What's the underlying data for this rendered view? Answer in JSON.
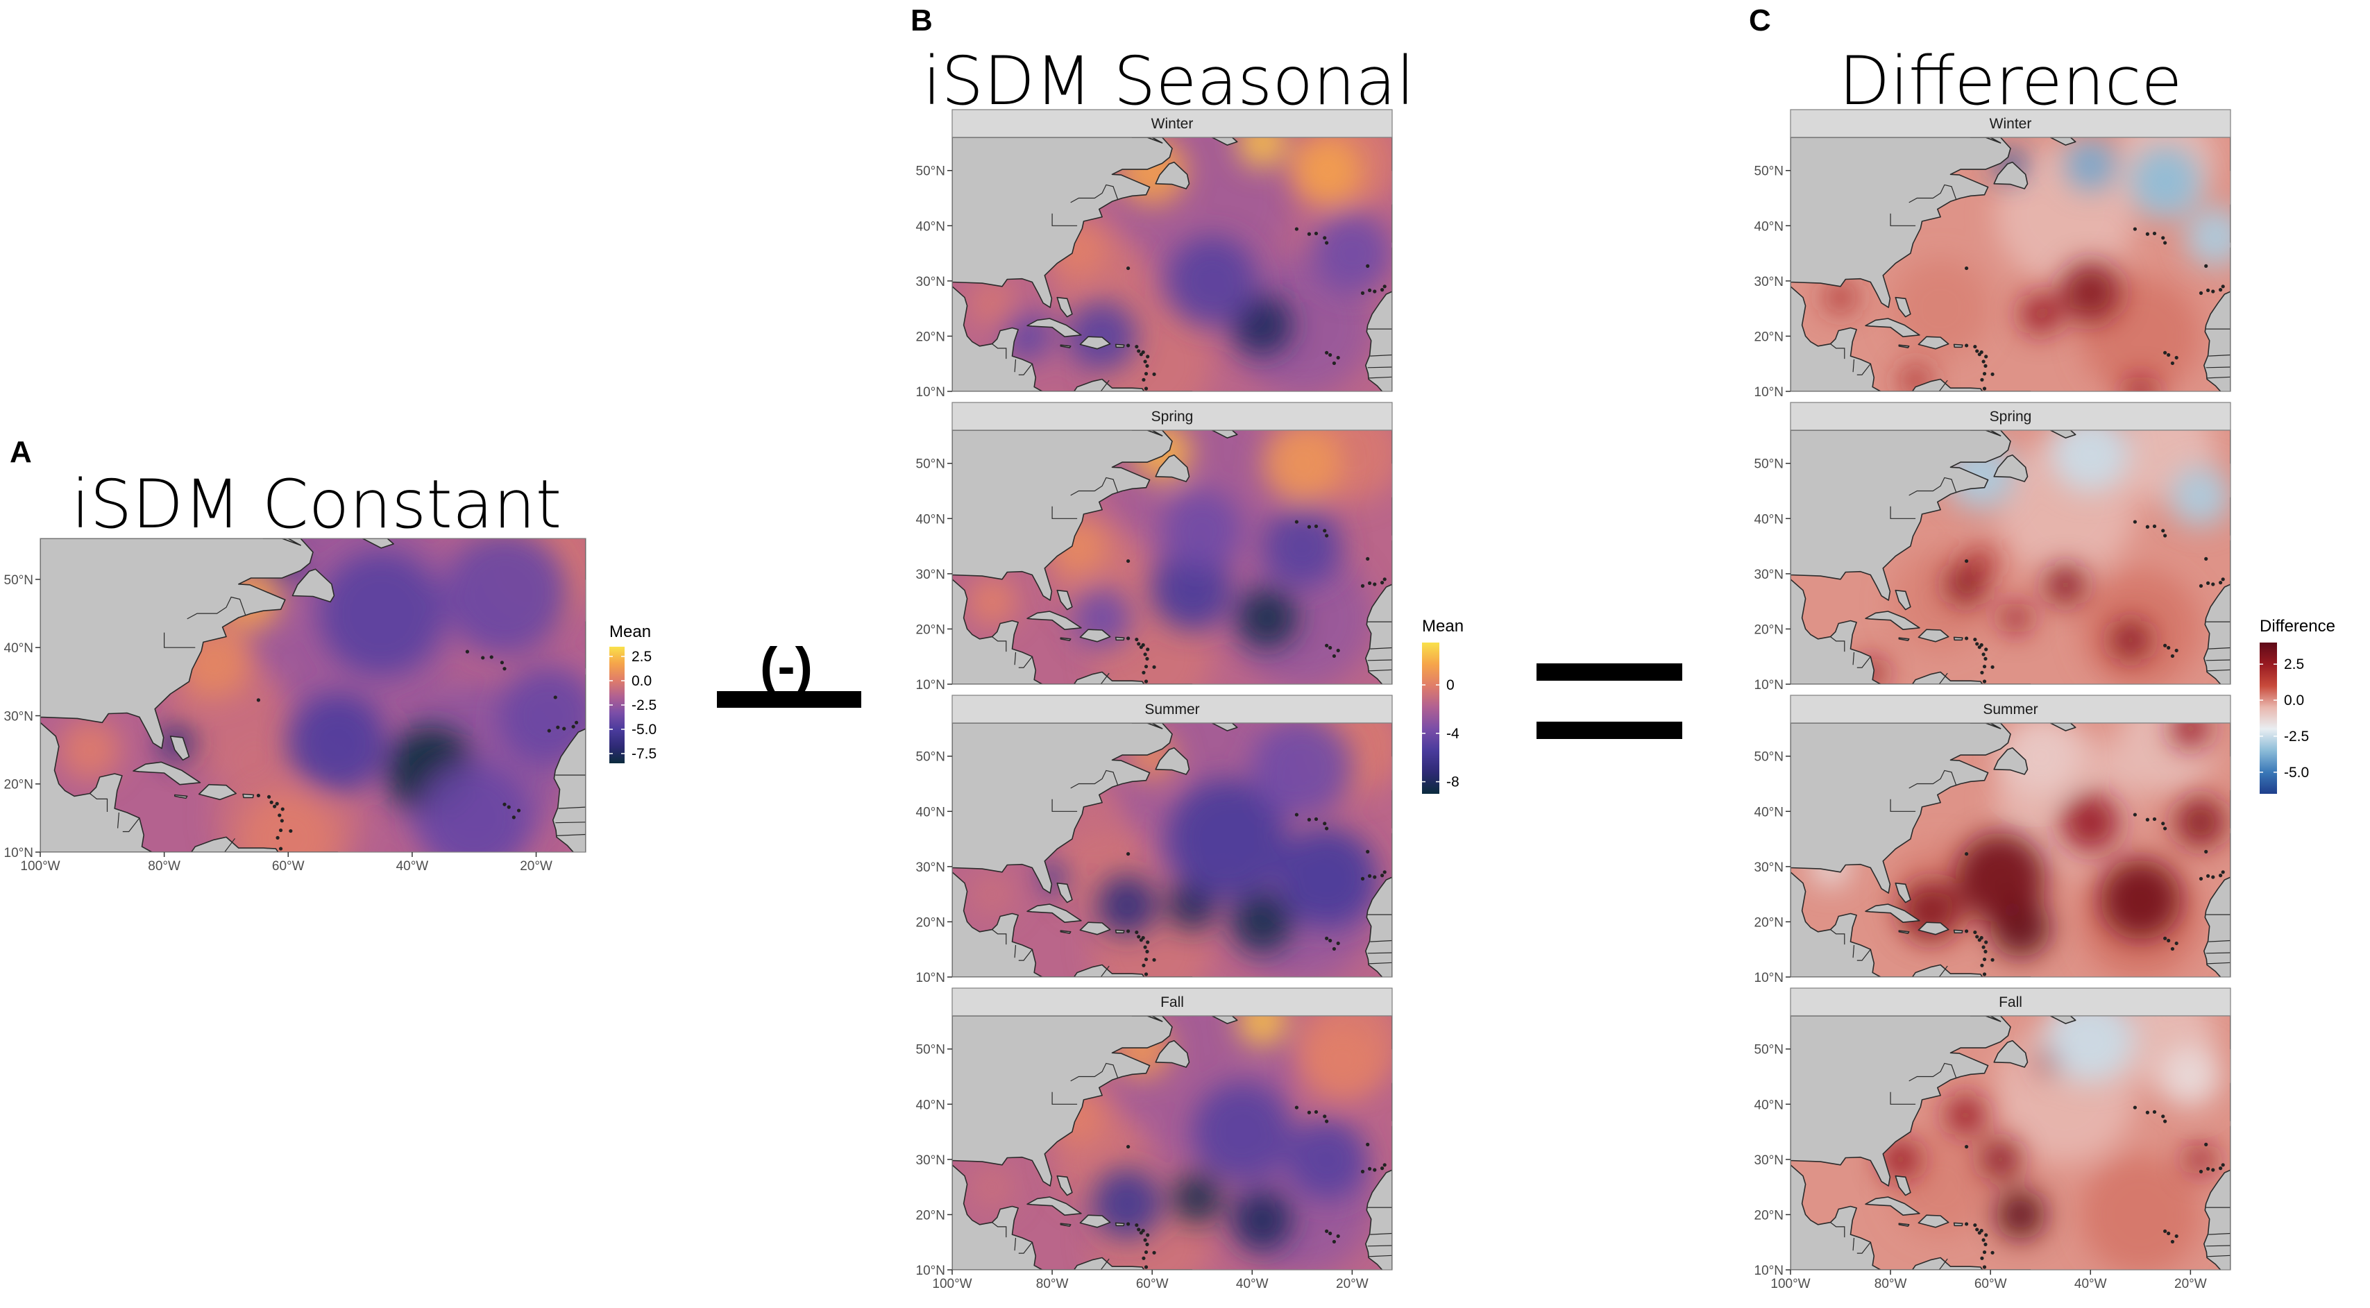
{
  "panels": [
    {
      "letter": "A",
      "title": "iSDM Constant"
    },
    {
      "letter": "B",
      "title": "iSDM Seasonal"
    },
    {
      "letter": "C",
      "title": "Difference"
    }
  ],
  "operator_subtract": "(-)",
  "palettes": {
    "mean": [
      "#0b2b3d",
      "#2e2a75",
      "#4a3b9c",
      "#7a4ea8",
      "#b06092",
      "#e07d69",
      "#f6a54a",
      "#f9e14b"
    ],
    "difference": [
      "#1f3f8c",
      "#3a78b8",
      "#8cbcd8",
      "#e9eef2",
      "#e9b7ae",
      "#c84a3b",
      "#981a21",
      "#5e0a18"
    ]
  },
  "colors": {
    "land": "#c2c2c2",
    "land_stroke": "#2a2a2a",
    "strip": "#d9d9d9"
  },
  "chart_data": [
    {
      "type": "heatmap",
      "panel": "A",
      "title": "iSDM Constant",
      "xlabel": "",
      "ylabel": "",
      "x_ticks": [
        "100°W",
        "80°W",
        "60°W",
        "40°W",
        "20°W"
      ],
      "x_tick_values": [
        -100,
        -80,
        -60,
        -40,
        -20
      ],
      "y_ticks": [
        "10°N",
        "20°N",
        "30°N",
        "40°N",
        "50°N"
      ],
      "y_tick_values": [
        10,
        20,
        30,
        40,
        50
      ],
      "xlim": [
        -100,
        -12
      ],
      "ylim": [
        10,
        56
      ],
      "legend": {
        "title": "Mean",
        "ticks": [
          "2.5",
          "0.0",
          "-2.5",
          "-5.0",
          "-7.5"
        ],
        "tick_values": [
          2.5,
          0.0,
          -2.5,
          -5.0,
          -7.5
        ],
        "range": [
          -8.5,
          3.5
        ],
        "placement": "right"
      },
      "facets": [
        {
          "label": "",
          "hotspots": [
            {
              "lon": -37,
              "lat": 22,
              "value": -8.5,
              "r": 7
            },
            {
              "lon": -52,
              "lat": 26,
              "value": -5,
              "r": 8
            },
            {
              "lon": -45,
              "lat": 45,
              "value": -4.5,
              "r": 10
            },
            {
              "lon": -62,
              "lat": 52,
              "value": -6,
              "r": 4
            },
            {
              "lon": -25,
              "lat": 48,
              "value": -4,
              "r": 10
            },
            {
              "lon": -18,
              "lat": 30,
              "value": -4,
              "r": 8
            },
            {
              "lon": -30,
              "lat": 15,
              "value": -4,
              "r": 9
            },
            {
              "lon": -78,
              "lat": 26,
              "value": -6.5,
              "r": 3
            },
            {
              "lon": -92,
              "lat": 25,
              "value": 0,
              "r": 5
            },
            {
              "lon": -66,
              "lat": 47,
              "value": 1.5,
              "r": 5
            },
            {
              "lon": -72,
              "lat": 38,
              "value": 0.5,
              "r": 6
            },
            {
              "lon": -60,
              "lat": 12,
              "value": 0,
              "r": 8
            }
          ]
        }
      ]
    },
    {
      "type": "heatmap",
      "panel": "B",
      "title": "iSDM Seasonal",
      "xlabel": "",
      "ylabel": "",
      "x_ticks": [
        "100°W",
        "80°W",
        "60°W",
        "40°W",
        "20°W"
      ],
      "x_tick_values": [
        -100,
        -80,
        -60,
        -40,
        -20
      ],
      "y_ticks": [
        "10°N",
        "20°N",
        "30°N",
        "40°N",
        "50°N"
      ],
      "y_tick_values": [
        10,
        20,
        30,
        40,
        50
      ],
      "xlim": [
        -100,
        -12
      ],
      "ylim": [
        10,
        56
      ],
      "legend": {
        "title": "Mean",
        "ticks": [
          "0",
          "-4",
          "-8"
        ],
        "tick_values": [
          0,
          -4,
          -8
        ],
        "range": [
          -9,
          3.5
        ],
        "placement": "right"
      },
      "facets": [
        {
          "label": "Winter",
          "hotspots": [
            {
              "lon": -38,
              "lat": 22,
              "value": -8,
              "r": 6
            },
            {
              "lon": -48,
              "lat": 30,
              "value": -5,
              "r": 9
            },
            {
              "lon": -70,
              "lat": 20,
              "value": -5,
              "r": 7
            },
            {
              "lon": -85,
              "lat": 20,
              "value": -4.5,
              "r": 5
            },
            {
              "lon": -20,
              "lat": 35,
              "value": -4,
              "r": 8
            },
            {
              "lon": -38,
              "lat": 55,
              "value": 2.5,
              "r": 5
            },
            {
              "lon": -60,
              "lat": 50,
              "value": 1.5,
              "r": 7
            },
            {
              "lon": -25,
              "lat": 50,
              "value": 1.5,
              "r": 7
            },
            {
              "lon": -75,
              "lat": 36,
              "value": 0,
              "r": 6
            },
            {
              "lon": -92,
              "lat": 26,
              "value": -0.5,
              "r": 5
            }
          ]
        },
        {
          "label": "Spring",
          "hotspots": [
            {
              "lon": -37,
              "lat": 22,
              "value": -8.5,
              "r": 6
            },
            {
              "lon": -52,
              "lat": 27,
              "value": -5.5,
              "r": 8
            },
            {
              "lon": -30,
              "lat": 35,
              "value": -5,
              "r": 8
            },
            {
              "lon": -50,
              "lat": 38,
              "value": -4,
              "r": 8
            },
            {
              "lon": -70,
              "lat": 22,
              "value": -4,
              "r": 6
            },
            {
              "lon": -58,
              "lat": 52,
              "value": 2,
              "r": 6
            },
            {
              "lon": -30,
              "lat": 50,
              "value": 1,
              "r": 8
            },
            {
              "lon": -75,
              "lat": 35,
              "value": 0.5,
              "r": 6
            },
            {
              "lon": -92,
              "lat": 25,
              "value": 0,
              "r": 5
            }
          ]
        },
        {
          "label": "Summer",
          "hotspots": [
            {
              "lon": -38,
              "lat": 20,
              "value": -8.5,
              "r": 6
            },
            {
              "lon": -52,
              "lat": 23,
              "value": -8,
              "r": 5
            },
            {
              "lon": -65,
              "lat": 23,
              "value": -7,
              "r": 6
            },
            {
              "lon": -45,
              "lat": 35,
              "value": -5.5,
              "r": 12
            },
            {
              "lon": -25,
              "lat": 28,
              "value": -5.5,
              "r": 10
            },
            {
              "lon": -30,
              "lat": 48,
              "value": -4,
              "r": 10
            },
            {
              "lon": -80,
              "lat": 28,
              "value": -6,
              "r": 3
            },
            {
              "lon": -60,
              "lat": 50,
              "value": 0.5,
              "r": 5
            },
            {
              "lon": -72,
              "lat": 40,
              "value": -1,
              "r": 5
            },
            {
              "lon": -92,
              "lat": 25,
              "value": -1,
              "r": 5
            }
          ]
        },
        {
          "label": "Fall",
          "hotspots": [
            {
              "lon": -51,
              "lat": 23,
              "value": -8.5,
              "r": 5
            },
            {
              "lon": -38,
              "lat": 19,
              "value": -8,
              "r": 6
            },
            {
              "lon": -65,
              "lat": 22,
              "value": -6,
              "r": 7
            },
            {
              "lon": -42,
              "lat": 35,
              "value": -5,
              "r": 10
            },
            {
              "lon": -25,
              "lat": 30,
              "value": -5,
              "r": 8
            },
            {
              "lon": -38,
              "lat": 55,
              "value": 2.5,
              "r": 5
            },
            {
              "lon": -62,
              "lat": 50,
              "value": 1,
              "r": 6
            },
            {
              "lon": -22,
              "lat": 48,
              "value": 0,
              "r": 8
            },
            {
              "lon": -75,
              "lat": 38,
              "value": 0,
              "r": 6
            },
            {
              "lon": -92,
              "lat": 25,
              "value": -1,
              "r": 5
            }
          ]
        }
      ]
    },
    {
      "type": "heatmap",
      "panel": "C",
      "title": "Difference",
      "xlabel": "",
      "ylabel": "",
      "x_ticks": [
        "100°W",
        "80°W",
        "60°W",
        "40°W",
        "20°W"
      ],
      "x_tick_values": [
        -100,
        -80,
        -60,
        -40,
        -20
      ],
      "y_ticks": [
        "10°N",
        "20°N",
        "30°N",
        "40°N",
        "50°N"
      ],
      "y_tick_values": [
        10,
        20,
        30,
        40,
        50
      ],
      "xlim": [
        -100,
        -12
      ],
      "ylim": [
        10,
        56
      ],
      "legend": {
        "title": "Difference",
        "ticks": [
          "2.5",
          "0.0",
          "-2.5",
          "-5.0"
        ],
        "tick_values": [
          2.5,
          0.0,
          -2.5,
          -5.0
        ],
        "range": [
          -6.5,
          4
        ],
        "placement": "right"
      },
      "facets": [
        {
          "label": "Winter",
          "hotspots": [
            {
              "lon": -56,
              "lat": 51,
              "value": -6,
              "r": 3
            },
            {
              "lon": -40,
              "lat": 51,
              "value": -4,
              "r": 5
            },
            {
              "lon": -25,
              "lat": 48,
              "value": -3.5,
              "r": 7
            },
            {
              "lon": -15,
              "lat": 38,
              "value": -3,
              "r": 6
            },
            {
              "lon": -40,
              "lat": 28,
              "value": 3,
              "r": 6
            },
            {
              "lon": -50,
              "lat": 24,
              "value": 2.5,
              "r": 4
            },
            {
              "lon": -90,
              "lat": 27,
              "value": 2,
              "r": 3
            },
            {
              "lon": -75,
              "lat": 12,
              "value": 2,
              "r": 3
            },
            {
              "lon": -30,
              "lat": 10,
              "value": 2.5,
              "r": 3
            }
          ]
        },
        {
          "label": "Spring",
          "hotspots": [
            {
              "lon": -62,
              "lat": 48,
              "value": -3,
              "r": 7
            },
            {
              "lon": -40,
              "lat": 52,
              "value": -2.5,
              "r": 8
            },
            {
              "lon": -18,
              "lat": 44,
              "value": -3,
              "r": 6
            },
            {
              "lon": -65,
              "lat": 28,
              "value": 3,
              "r": 4
            },
            {
              "lon": -45,
              "lat": 28,
              "value": 3,
              "r": 4
            },
            {
              "lon": -55,
              "lat": 22,
              "value": 2.5,
              "r": 3
            },
            {
              "lon": -32,
              "lat": 18,
              "value": 3,
              "r": 4
            },
            {
              "lon": -84,
              "lat": 12,
              "value": 2.5,
              "r": 3
            },
            {
              "lon": -62,
              "lat": 32,
              "value": 2,
              "r": 3
            }
          ]
        },
        {
          "label": "Summer",
          "hotspots": [
            {
              "lon": -54,
              "lat": 19,
              "value": 4,
              "r": 6
            },
            {
              "lon": -58,
              "lat": 28,
              "value": 3.5,
              "r": 9
            },
            {
              "lon": -30,
              "lat": 24,
              "value": 3.5,
              "r": 8
            },
            {
              "lon": -72,
              "lat": 22,
              "value": 3,
              "r": 6
            },
            {
              "lon": -18,
              "lat": 38,
              "value": 3,
              "r": 5
            },
            {
              "lon": -40,
              "lat": 38,
              "value": 2.5,
              "r": 6
            },
            {
              "lon": -20,
              "lat": 55,
              "value": 2.5,
              "r": 4
            },
            {
              "lon": -92,
              "lat": 30,
              "value": -1.5,
              "r": 4
            },
            {
              "lon": -50,
              "lat": 50,
              "value": -1,
              "r": 8
            }
          ]
        },
        {
          "label": "Fall",
          "hotspots": [
            {
              "lon": -54,
              "lat": 20,
              "value": 4,
              "r": 5
            },
            {
              "lon": -58,
              "lat": 30,
              "value": 3,
              "r": 4
            },
            {
              "lon": -65,
              "lat": 38,
              "value": 2.5,
              "r": 4
            },
            {
              "lon": -78,
              "lat": 30,
              "value": 2.5,
              "r": 4
            },
            {
              "lon": -48,
              "lat": 48,
              "value": 2.5,
              "r": 3
            },
            {
              "lon": -18,
              "lat": 30,
              "value": 2.5,
              "r": 3
            },
            {
              "lon": -40,
              "lat": 52,
              "value": -2.5,
              "r": 9
            },
            {
              "lon": -88,
              "lat": 40,
              "value": -1,
              "r": 4
            },
            {
              "lon": -20,
              "lat": 45,
              "value": -1.5,
              "r": 6
            }
          ]
        }
      ]
    }
  ]
}
